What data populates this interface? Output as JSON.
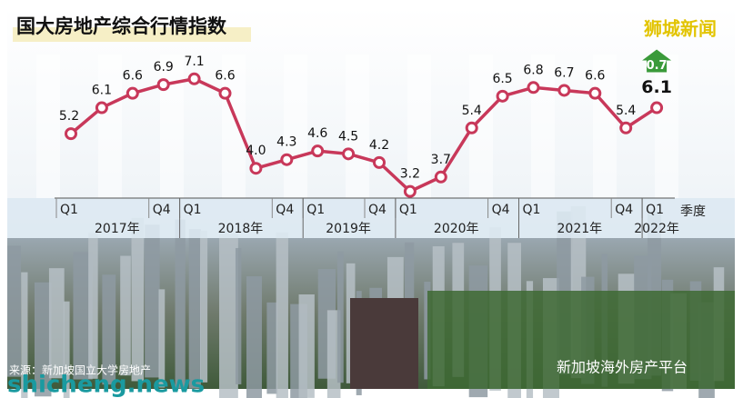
{
  "chart_data": {
    "type": "line",
    "title": "国大房地产综合行情指数",
    "categories": [
      "Q1",
      null,
      null,
      "Q4",
      "Q1",
      null,
      null,
      "Q4",
      "Q1",
      null,
      "Q4",
      "Q1",
      null,
      null,
      "Q4",
      "Q1",
      null,
      null,
      "Q4",
      "Q1"
    ],
    "x_groups": [
      {
        "label": "2017年",
        "count": 4
      },
      {
        "label": "2018年",
        "count": 4
      },
      {
        "label": "2019年",
        "count": 3
      },
      {
        "label": "2020年",
        "count": 4
      },
      {
        "label": "2021年",
        "count": 4
      },
      {
        "label": "2022年",
        "count": 1
      }
    ],
    "x_label": "季度",
    "values": [
      5.2,
      6.1,
      6.6,
      6.9,
      7.1,
      6.6,
      4.0,
      4.3,
      4.6,
      4.5,
      4.2,
      3.2,
      3.7,
      5.4,
      6.5,
      6.8,
      6.7,
      6.6,
      5.4,
      6.1
    ],
    "value_labels": [
      "5.2",
      "6.1",
      "6.6",
      "6.9",
      "7.1",
      "6.6",
      "4.0",
      "4.3",
      "4.6",
      "4.5",
      "4.2",
      "3.2",
      "3.7",
      "5.4",
      "6.5",
      "6.8",
      "6.7",
      "6.6",
      "5.4",
      "6.1"
    ],
    "color": "#c8385a",
    "ylim": [
      3,
      8.1
    ],
    "annotation": "0.7",
    "annotation_color": "#3a9a3a",
    "source": "来源：新加坡国立大学房地产",
    "watermarks": [
      "狮城新闻",
      "shicheng.news",
      "新加坡海外房产平台"
    ]
  }
}
